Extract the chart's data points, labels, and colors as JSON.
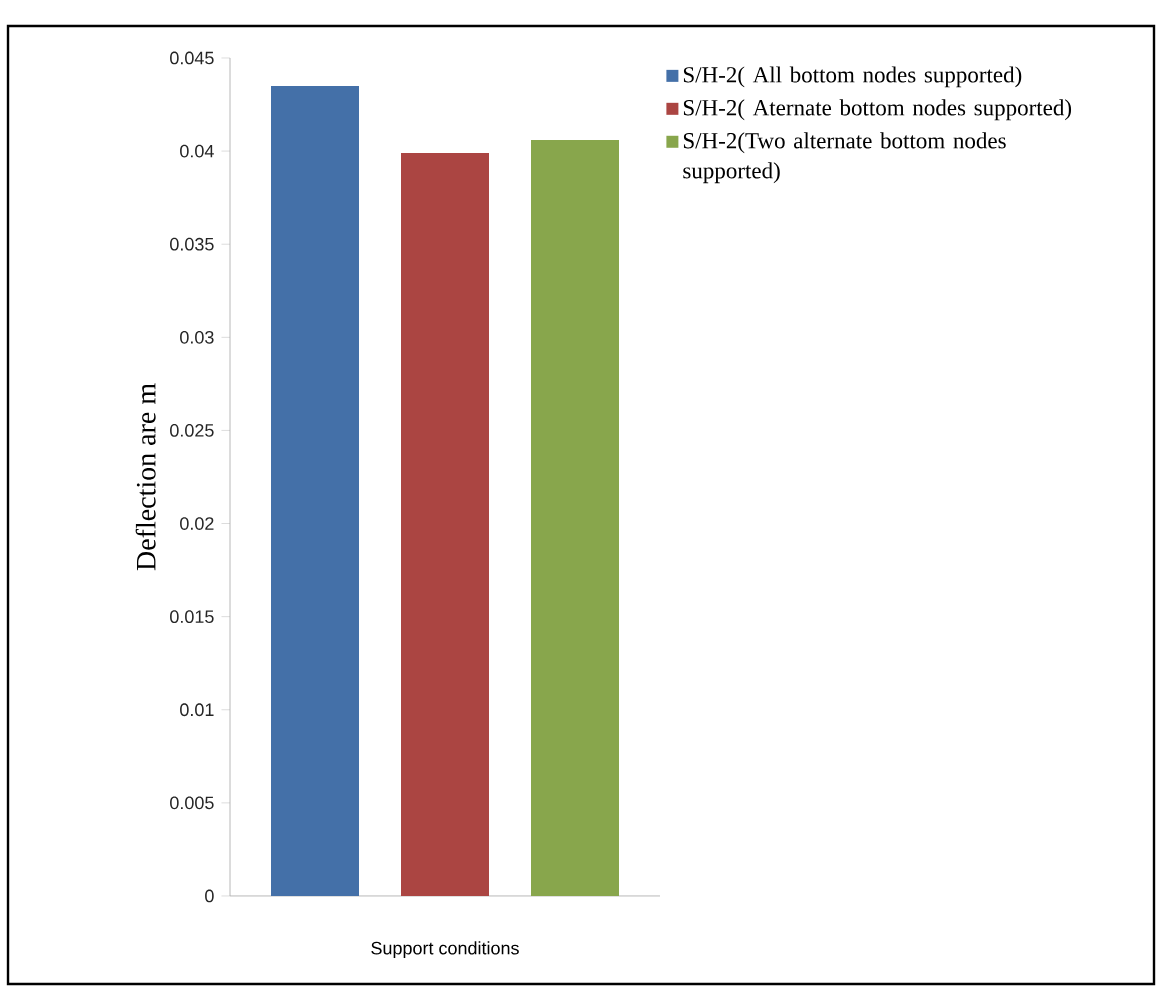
{
  "chart_data": {
    "type": "bar",
    "categories": [
      null
    ],
    "series": [
      {
        "name": "S/H-2( All bottom nodes supported)",
        "color": "#4470a8",
        "values": [
          0.0435
        ]
      },
      {
        "name": "S/H-2( Aternate bottom nodes supported)",
        "color": "#ab4542",
        "values": [
          0.0399
        ]
      },
      {
        "name": "S/H-2(Two alternate bottom nodes supported)",
        "color": "#88a64c",
        "values": [
          0.0406
        ]
      }
    ],
    "xlabel": "Support conditions",
    "ylabel": "Deflection are m",
    "ylim": [
      0,
      0.045
    ],
    "yticks": [
      0,
      0.005,
      0.01,
      0.015,
      0.02,
      0.025,
      0.03,
      0.035,
      0.04,
      0.045
    ],
    "grid": false,
    "legend": "top right"
  }
}
